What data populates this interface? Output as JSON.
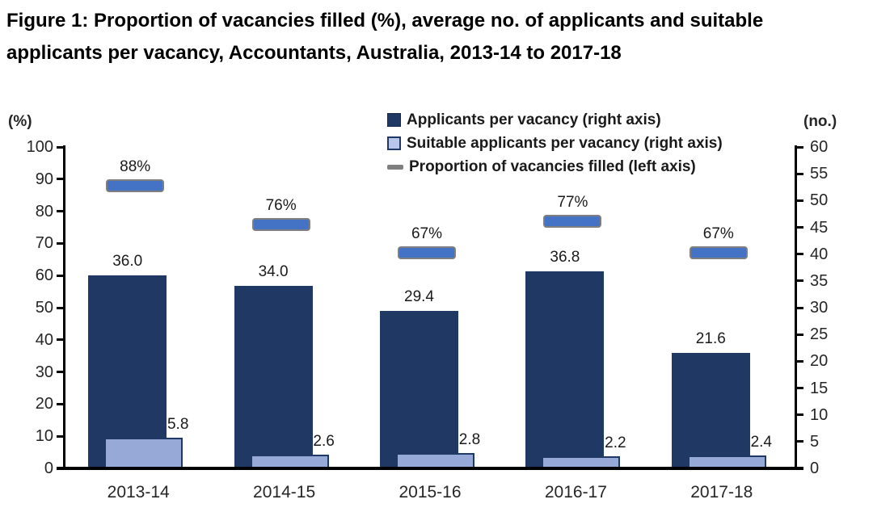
{
  "figure": {
    "title": "Figure 1: Proportion of vacancies filled (%), average no. of applicants and suitable applicants per vacancy, Accountants, Australia, 2013-14 to 2017-18",
    "title_lines": [
      "Figure 1: Proportion of vacancies filled (%), average no. of applicants and suitable",
      "applicants per vacancy, Accountants, Australia, 2013-14 to 2017-18"
    ]
  },
  "chart_data": {
    "type": "bar",
    "title": "Figure 1: Proportion of vacancies filled (%), average no. of applicants and suitable applicants per vacancy, Accountants, Australia, 2013-14 to 2017-18",
    "categories": [
      "2013-14",
      "2014-15",
      "2015-16",
      "2016-17",
      "2017-18"
    ],
    "series": [
      {
        "name": "Applicants per vacancy (right axis)",
        "type": "bar",
        "axis": "right",
        "color": "#1F3864",
        "values": [
          36.0,
          34.0,
          29.4,
          36.8,
          21.6
        ],
        "labels": [
          "36.0",
          "34.0",
          "29.4",
          "36.8",
          "21.6"
        ]
      },
      {
        "name": "Suitable applicants per vacancy (right axis)",
        "type": "bar",
        "axis": "right",
        "color": "#97A9D7",
        "border_color": "#1F3864",
        "values": [
          5.8,
          2.6,
          2.8,
          2.2,
          2.4
        ],
        "labels": [
          "5.8",
          "2.6",
          "2.8",
          "2.2",
          "2.4"
        ]
      },
      {
        "name": "Proportion of vacancies filled (left axis)",
        "type": "dash-marker",
        "axis": "left",
        "color": "#4472C4",
        "marker_border_color": "#7F7F7F",
        "legend_marker_color": "#7F7F7F",
        "values": [
          88,
          76,
          67,
          77,
          67
        ],
        "labels": [
          "88%",
          "76%",
          "67%",
          "77%",
          "67%"
        ]
      }
    ],
    "left_axis": {
      "caption": "(%)",
      "min": 0,
      "max": 100,
      "step": 10
    },
    "right_axis": {
      "caption": "(no.)",
      "min": 0,
      "max": 60,
      "step": 5
    },
    "legend_position": "top-center",
    "grid": false
  }
}
